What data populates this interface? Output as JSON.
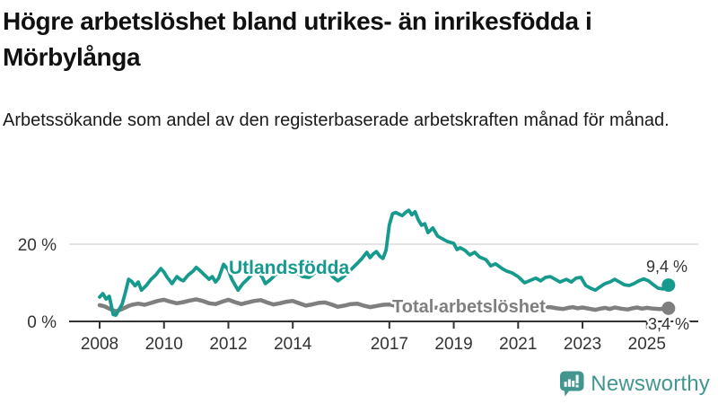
{
  "header": {
    "title": "Högre arbetslöshet bland utrikes- än inrikesfödda i Mörbylånga",
    "subtitle": "Arbetssökande som andel av den registerbaserade arbetskraften månad för månad."
  },
  "logo": {
    "text": "Newsworthy",
    "color": "#43968f"
  },
  "chart_data": {
    "type": "line",
    "title": "Högre arbetslöshet bland utrikes- än inrikesfödda i Mörbylånga",
    "subtitle": "Arbetssökande som andel av den registerbaserade arbetskraften månad för månad.",
    "xlabel": "",
    "ylabel": "",
    "xlim": [
      2007.9,
      2026.2
    ],
    "ylim": [
      0,
      32.5
    ],
    "grid": "single-horizontal-gridline-at-20",
    "legend_position": "inline-labels-on-lines",
    "colors": {
      "axis": "#333333",
      "gridline": "#dcdcdc",
      "accent_teal": "#169a8e",
      "accent_gray": "#7f7f7f"
    },
    "x_ticks": [
      {
        "value": 2008,
        "label": "2008"
      },
      {
        "value": 2010,
        "label": "2010"
      },
      {
        "value": 2012,
        "label": "2012"
      },
      {
        "value": 2014,
        "label": "2014"
      },
      {
        "value": 2017,
        "label": "2017"
      },
      {
        "value": 2019,
        "label": "2019"
      },
      {
        "value": 2021,
        "label": "2021"
      },
      {
        "value": 2023,
        "label": "2023"
      },
      {
        "value": 2025,
        "label": "2025"
      }
    ],
    "y_ticks": [
      {
        "value": 0,
        "label": "0 %"
      },
      {
        "value": 20,
        "label": "20 %"
      }
    ],
    "series": [
      {
        "name": "Utlandsfödda",
        "color": "#169a8e",
        "end_label": "9,4 %",
        "end_value": 9.4,
        "points": [
          [
            2008.0,
            6.3
          ],
          [
            2008.1,
            7.2
          ],
          [
            2008.2,
            5.8
          ],
          [
            2008.3,
            6.5
          ],
          [
            2008.42,
            1.8
          ],
          [
            2008.5,
            1.6
          ],
          [
            2008.6,
            3.0
          ],
          [
            2008.7,
            4.5
          ],
          [
            2008.8,
            7.5
          ],
          [
            2008.9,
            10.9
          ],
          [
            2009.0,
            10.3
          ],
          [
            2009.1,
            9.2
          ],
          [
            2009.2,
            10.2
          ],
          [
            2009.3,
            8.1
          ],
          [
            2009.45,
            9.3
          ],
          [
            2009.6,
            10.9
          ],
          [
            2009.75,
            12.1
          ],
          [
            2009.9,
            13.7
          ],
          [
            2010.0,
            12.8
          ],
          [
            2010.1,
            11.4
          ],
          [
            2010.25,
            9.8
          ],
          [
            2010.4,
            11.6
          ],
          [
            2010.5,
            10.9
          ],
          [
            2010.6,
            10.5
          ],
          [
            2010.75,
            12.0
          ],
          [
            2010.9,
            13.0
          ],
          [
            2011.0,
            14.0
          ],
          [
            2011.1,
            13.3
          ],
          [
            2011.25,
            12.1
          ],
          [
            2011.4,
            10.9
          ],
          [
            2011.5,
            11.6
          ],
          [
            2011.6,
            10.2
          ],
          [
            2011.7,
            11.2
          ],
          [
            2011.85,
            14.8
          ],
          [
            2012.0,
            13.3
          ],
          [
            2012.1,
            11.0
          ],
          [
            2012.3,
            8.1
          ],
          [
            2012.45,
            9.8
          ],
          [
            2012.6,
            11.0
          ],
          [
            2012.75,
            12.3
          ],
          [
            2012.9,
            13.0
          ],
          [
            2013.05,
            11.5
          ],
          [
            2013.15,
            9.8
          ],
          [
            2013.3,
            10.8
          ],
          [
            2013.45,
            12.0
          ],
          [
            2013.6,
            13.0
          ],
          [
            2013.75,
            14.0
          ],
          [
            2013.9,
            14.5
          ],
          [
            2014.0,
            13.8
          ],
          [
            2014.15,
            12.5
          ],
          [
            2014.3,
            11.6
          ],
          [
            2014.5,
            11.4
          ],
          [
            2014.65,
            12.3
          ],
          [
            2014.8,
            13.5
          ],
          [
            2014.95,
            14.2
          ],
          [
            2015.1,
            13.0
          ],
          [
            2015.25,
            11.5
          ],
          [
            2015.4,
            10.5
          ],
          [
            2015.55,
            11.4
          ],
          [
            2015.7,
            12.5
          ],
          [
            2015.85,
            13.8
          ],
          [
            2016.0,
            15.0
          ],
          [
            2016.15,
            16.3
          ],
          [
            2016.3,
            17.9
          ],
          [
            2016.4,
            16.5
          ],
          [
            2016.5,
            17.5
          ],
          [
            2016.6,
            18.1
          ],
          [
            2016.7,
            16.9
          ],
          [
            2016.8,
            16.3
          ],
          [
            2016.9,
            18.5
          ],
          [
            2017.0,
            25.0
          ],
          [
            2017.1,
            27.9
          ],
          [
            2017.2,
            28.2
          ],
          [
            2017.3,
            27.8
          ],
          [
            2017.4,
            27.4
          ],
          [
            2017.5,
            28.2
          ],
          [
            2017.6,
            28.8
          ],
          [
            2017.7,
            27.6
          ],
          [
            2017.8,
            28.4
          ],
          [
            2017.9,
            26.3
          ],
          [
            2018.0,
            24.9
          ],
          [
            2018.1,
            25.3
          ],
          [
            2018.2,
            23.0
          ],
          [
            2018.35,
            24.2
          ],
          [
            2018.5,
            22.1
          ],
          [
            2018.65,
            21.4
          ],
          [
            2018.8,
            20.7
          ],
          [
            2019.0,
            20.2
          ],
          [
            2019.1,
            18.6
          ],
          [
            2019.2,
            19.1
          ],
          [
            2019.35,
            18.4
          ],
          [
            2019.5,
            17.2
          ],
          [
            2019.65,
            17.9
          ],
          [
            2019.8,
            16.7
          ],
          [
            2020.0,
            16.0
          ],
          [
            2020.15,
            14.4
          ],
          [
            2020.3,
            14.9
          ],
          [
            2020.5,
            13.7
          ],
          [
            2020.65,
            13.0
          ],
          [
            2020.8,
            12.6
          ],
          [
            2021.0,
            11.6
          ],
          [
            2021.2,
            10.0
          ],
          [
            2021.4,
            10.7
          ],
          [
            2021.55,
            11.2
          ],
          [
            2021.7,
            10.5
          ],
          [
            2021.85,
            11.4
          ],
          [
            2022.0,
            11.6
          ],
          [
            2022.15,
            10.9
          ],
          [
            2022.3,
            10.2
          ],
          [
            2022.5,
            10.9
          ],
          [
            2022.65,
            10.2
          ],
          [
            2022.8,
            11.2
          ],
          [
            2022.95,
            11.4
          ],
          [
            2023.1,
            9.3
          ],
          [
            2023.25,
            8.6
          ],
          [
            2023.4,
            8.1
          ],
          [
            2023.55,
            9.0
          ],
          [
            2023.7,
            9.8
          ],
          [
            2023.85,
            10.2
          ],
          [
            2024.0,
            10.9
          ],
          [
            2024.15,
            10.2
          ],
          [
            2024.3,
            9.5
          ],
          [
            2024.45,
            9.3
          ],
          [
            2024.6,
            9.8
          ],
          [
            2024.75,
            10.5
          ],
          [
            2024.9,
            11.0
          ],
          [
            2025.05,
            10.5
          ],
          [
            2025.2,
            9.5
          ],
          [
            2025.35,
            8.6
          ],
          [
            2025.5,
            8.4
          ],
          [
            2025.67,
            9.4
          ]
        ]
      },
      {
        "name": "Total arbetslöshet",
        "color": "#7f7f7f",
        "end_label": "3,4 %",
        "end_value": 3.4,
        "points": [
          [
            2008.0,
            4.2
          ],
          [
            2008.15,
            3.9
          ],
          [
            2008.3,
            3.3
          ],
          [
            2008.5,
            2.6
          ],
          [
            2008.7,
            3.2
          ],
          [
            2008.9,
            4.0
          ],
          [
            2009.0,
            4.3
          ],
          [
            2009.2,
            4.6
          ],
          [
            2009.4,
            4.3
          ],
          [
            2009.6,
            4.8
          ],
          [
            2009.8,
            5.3
          ],
          [
            2010.0,
            5.6
          ],
          [
            2010.2,
            5.1
          ],
          [
            2010.4,
            4.7
          ],
          [
            2010.6,
            5.0
          ],
          [
            2010.8,
            5.4
          ],
          [
            2011.0,
            5.7
          ],
          [
            2011.2,
            5.3
          ],
          [
            2011.4,
            4.7
          ],
          [
            2011.6,
            4.5
          ],
          [
            2011.8,
            5.1
          ],
          [
            2012.0,
            5.6
          ],
          [
            2012.2,
            5.0
          ],
          [
            2012.4,
            4.5
          ],
          [
            2012.6,
            4.9
          ],
          [
            2012.8,
            5.3
          ],
          [
            2013.0,
            5.5
          ],
          [
            2013.2,
            4.9
          ],
          [
            2013.4,
            4.4
          ],
          [
            2013.6,
            4.7
          ],
          [
            2013.8,
            5.1
          ],
          [
            2014.0,
            5.3
          ],
          [
            2014.2,
            4.7
          ],
          [
            2014.4,
            4.1
          ],
          [
            2014.6,
            4.4
          ],
          [
            2014.8,
            4.8
          ],
          [
            2015.0,
            4.9
          ],
          [
            2015.2,
            4.4
          ],
          [
            2015.4,
            3.8
          ],
          [
            2015.6,
            4.1
          ],
          [
            2015.8,
            4.5
          ],
          [
            2016.0,
            4.6
          ],
          [
            2016.2,
            4.1
          ],
          [
            2016.4,
            3.7
          ],
          [
            2016.6,
            4.0
          ],
          [
            2016.8,
            4.3
          ],
          [
            2017.0,
            4.4
          ],
          [
            2017.2,
            4.0
          ],
          [
            2017.4,
            3.6
          ],
          [
            2017.6,
            3.9
          ],
          [
            2017.8,
            4.2
          ],
          [
            2018.0,
            4.2
          ],
          [
            2018.2,
            3.8
          ],
          [
            2018.4,
            3.5
          ],
          [
            2018.6,
            3.7
          ],
          [
            2018.8,
            4.0
          ],
          [
            2019.0,
            4.0
          ],
          [
            2019.2,
            3.7
          ],
          [
            2019.4,
            3.4
          ],
          [
            2019.6,
            3.6
          ],
          [
            2019.8,
            3.8
          ],
          [
            2020.0,
            3.9
          ],
          [
            2020.2,
            3.6
          ],
          [
            2020.4,
            3.4
          ],
          [
            2020.6,
            3.6
          ],
          [
            2020.8,
            3.8
          ],
          [
            2021.0,
            3.8
          ],
          [
            2021.2,
            3.5
          ],
          [
            2021.4,
            3.3
          ],
          [
            2021.6,
            3.5
          ],
          [
            2021.8,
            3.7
          ],
          [
            2022.0,
            3.7
          ],
          [
            2022.2,
            3.4
          ],
          [
            2022.4,
            3.2
          ],
          [
            2022.55,
            3.5
          ],
          [
            2022.7,
            3.7
          ],
          [
            2022.85,
            3.4
          ],
          [
            2023.0,
            3.6
          ],
          [
            2023.2,
            3.3
          ],
          [
            2023.4,
            3.0
          ],
          [
            2023.55,
            3.3
          ],
          [
            2023.7,
            3.5
          ],
          [
            2023.85,
            3.2
          ],
          [
            2024.0,
            3.6
          ],
          [
            2024.2,
            3.3
          ],
          [
            2024.4,
            3.1
          ],
          [
            2024.55,
            3.4
          ],
          [
            2024.7,
            3.6
          ],
          [
            2024.85,
            3.3
          ],
          [
            2025.0,
            3.5
          ],
          [
            2025.2,
            3.3
          ],
          [
            2025.4,
            3.2
          ],
          [
            2025.67,
            3.4
          ]
        ]
      }
    ]
  }
}
